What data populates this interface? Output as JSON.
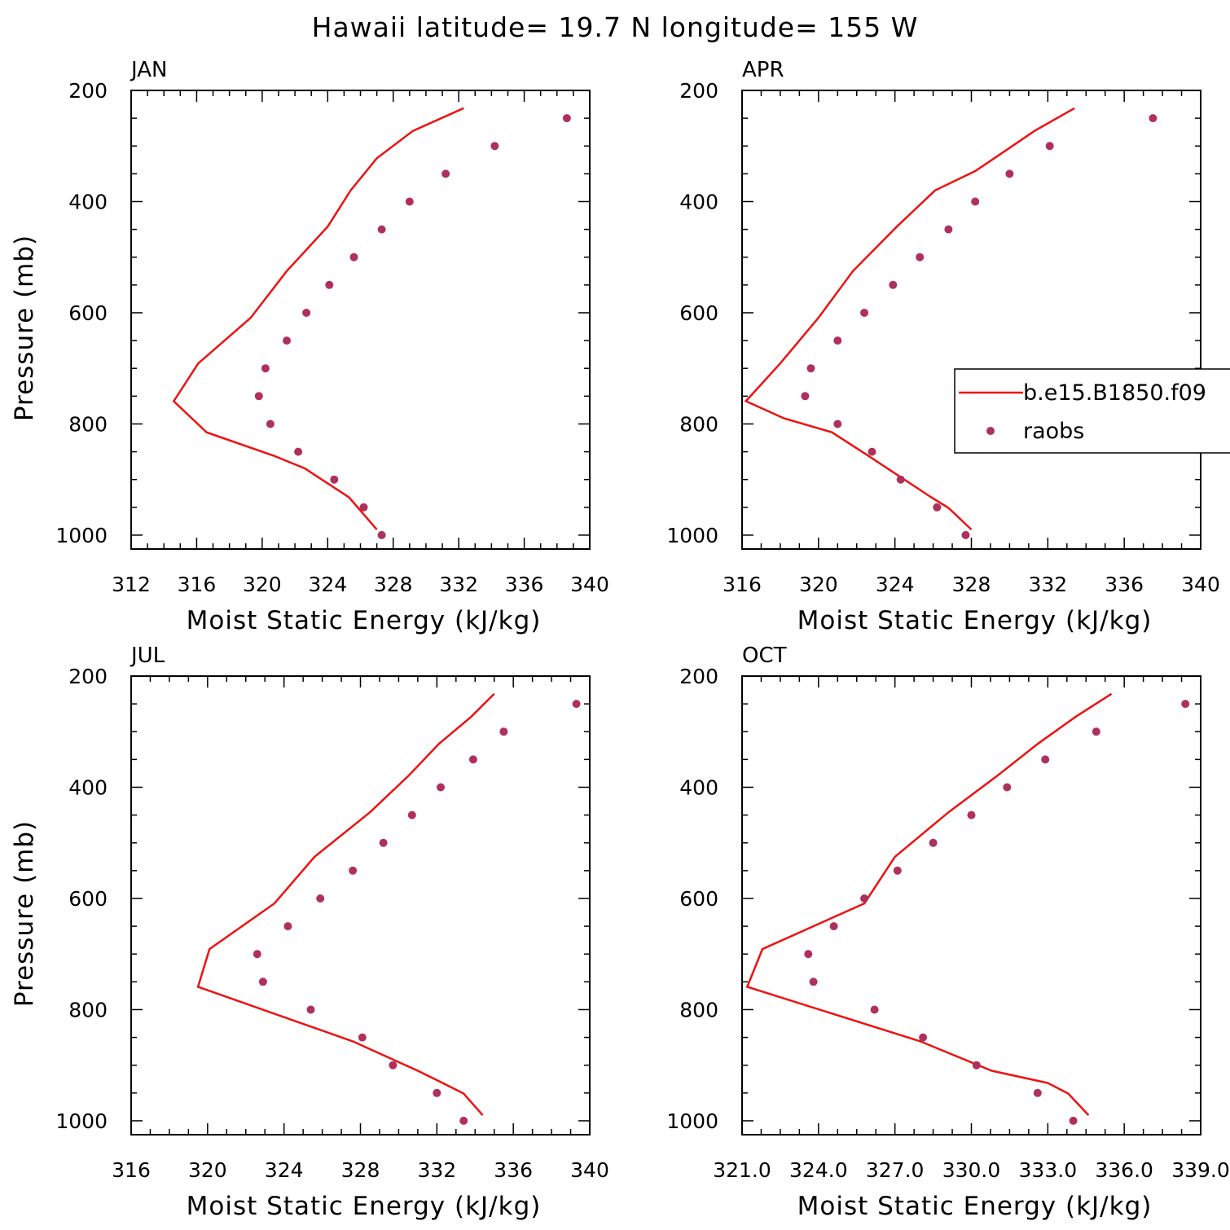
{
  "title": "Hawaii  latitude= 19.7 N longitude= 155 W",
  "colors": {
    "model_line": "#ee1111",
    "raobs_marker": "#b0305c",
    "axes": "#000000"
  },
  "legend": {
    "location": "right of APR panel",
    "entries": [
      "b.e15.B1850.f09",
      "raobs"
    ]
  },
  "chart_data": [
    {
      "type": "line",
      "panel": "JAN",
      "xlabel": "Moist Static Energy (kJ/kg)",
      "ylabel": "Pressure (mb)",
      "xlim": [
        312,
        340
      ],
      "ylim": [
        1025,
        200
      ],
      "xticks": [
        312,
        316,
        320,
        324,
        328,
        332,
        336,
        340
      ],
      "xtick_labels": [
        "312",
        "316",
        "320",
        "324",
        "328",
        "332",
        "336",
        "340"
      ],
      "yticks": [
        200,
        400,
        600,
        800,
        1000
      ],
      "yminor": 50,
      "series": [
        {
          "name": "b.e15.B1850.f09",
          "kind": "line",
          "x": [
            332.3,
            329.2,
            327.0,
            325.4,
            324.0,
            321.5,
            319.3,
            316.1,
            314.6,
            316.6,
            320.7,
            322.6,
            325.3,
            327.0
          ],
          "y": [
            232,
            273,
            322,
            380,
            445,
            525,
            609,
            691,
            759,
            815,
            857,
            880,
            932,
            990
          ]
        },
        {
          "name": "raobs",
          "kind": "scatter",
          "x": [
            338.6,
            334.2,
            331.2,
            329.0,
            327.3,
            325.6,
            324.1,
            322.7,
            321.5,
            320.2,
            319.8,
            320.5,
            322.2,
            324.4,
            326.2,
            327.3
          ],
          "y": [
            250,
            300,
            350,
            400,
            450,
            500,
            550,
            600,
            650,
            700,
            750,
            800,
            850,
            900,
            950,
            1000
          ]
        }
      ]
    },
    {
      "type": "line",
      "panel": "APR",
      "xlabel": "Moist Static Energy (kJ/kg)",
      "ylabel": "",
      "xlim": [
        316,
        340
      ],
      "ylim": [
        1025,
        200
      ],
      "xticks": [
        316,
        320,
        324,
        328,
        332,
        336,
        340
      ],
      "xtick_labels": [
        "316",
        "320",
        "324",
        "328",
        "332",
        "336",
        "340"
      ],
      "yticks": [
        200,
        400,
        600,
        800,
        1000
      ],
      "yminor": 50,
      "series": [
        {
          "name": "b.e15.B1850.f09",
          "kind": "line",
          "x": [
            333.4,
            331.3,
            329.2,
            328.2,
            326.1,
            324.1,
            321.8,
            320.0,
            318.0,
            316.2,
            318.2,
            320.7,
            322.6,
            325.9,
            326.8,
            328.0
          ],
          "y": [
            232,
            273,
            322,
            345,
            380,
            445,
            525,
            609,
            691,
            759,
            790,
            815,
            857,
            932,
            951,
            990
          ]
        },
        {
          "name": "raobs",
          "kind": "scatter",
          "x": [
            337.5,
            332.1,
            330.0,
            328.2,
            326.8,
            325.3,
            323.9,
            322.4,
            321.0,
            319.6,
            319.3,
            321.0,
            322.8,
            324.3,
            326.2,
            327.7
          ],
          "y": [
            250,
            300,
            350,
            400,
            450,
            500,
            550,
            600,
            650,
            700,
            750,
            800,
            850,
            900,
            950,
            1000
          ]
        }
      ]
    },
    {
      "type": "line",
      "panel": "JUL",
      "xlabel": "Moist Static Energy (kJ/kg)",
      "ylabel": "Pressure (mb)",
      "xlim": [
        316,
        340
      ],
      "ylim": [
        1025,
        200
      ],
      "xticks": [
        316,
        320,
        324,
        328,
        332,
        336,
        340
      ],
      "xtick_labels": [
        "316",
        "320",
        "324",
        "328",
        "332",
        "336",
        "340"
      ],
      "yticks": [
        200,
        400,
        600,
        800,
        1000
      ],
      "yminor": 50,
      "series": [
        {
          "name": "b.e15.B1850.f09",
          "kind": "line",
          "x": [
            335.0,
            333.8,
            332.1,
            330.5,
            328.5,
            325.6,
            323.5,
            320.1,
            319.5,
            327.6,
            331.0,
            332.3,
            333.4,
            334.4
          ],
          "y": [
            232,
            273,
            322,
            380,
            445,
            525,
            609,
            691,
            759,
            857,
            910,
            932,
            951,
            990
          ]
        },
        {
          "name": "raobs",
          "kind": "scatter",
          "x": [
            339.3,
            335.5,
            333.9,
            332.2,
            330.7,
            329.2,
            327.6,
            325.9,
            324.2,
            322.6,
            322.9,
            325.4,
            328.1,
            329.7,
            332.0,
            333.4
          ],
          "y": [
            250,
            300,
            350,
            400,
            450,
            500,
            550,
            600,
            650,
            700,
            750,
            800,
            850,
            900,
            950,
            1000
          ]
        }
      ]
    },
    {
      "type": "line",
      "panel": "OCT",
      "xlabel": "Moist Static Energy (kJ/kg)",
      "ylabel": "",
      "xlim": [
        321,
        339
      ],
      "ylim": [
        1025,
        200
      ],
      "xticks": [
        321,
        324,
        327,
        330,
        333,
        336,
        339
      ],
      "xtick_labels": [
        "321.0",
        "324.0",
        "327.0",
        "330.0",
        "333.0",
        "336.0",
        "339.0"
      ],
      "yticks": [
        200,
        400,
        600,
        800,
        1000
      ],
      "yminor": 50,
      "series": [
        {
          "name": "b.e15.B1850.f09",
          "kind": "line",
          "x": [
            335.5,
            334.1,
            332.6,
            331.0,
            329.1,
            327.0,
            325.8,
            321.8,
            321.2,
            328.0,
            330.8,
            333.0,
            333.8,
            334.6
          ],
          "y": [
            232,
            273,
            322,
            380,
            445,
            525,
            609,
            691,
            759,
            857,
            910,
            932,
            951,
            990
          ]
        },
        {
          "name": "raobs",
          "kind": "scatter",
          "x": [
            338.4,
            334.9,
            332.9,
            331.4,
            330.0,
            328.5,
            327.1,
            325.8,
            324.6,
            323.6,
            323.8,
            326.2,
            328.1,
            330.2,
            332.6,
            334.0
          ],
          "y": [
            250,
            300,
            350,
            400,
            450,
            500,
            550,
            600,
            650,
            700,
            750,
            800,
            850,
            900,
            950,
            1000
          ]
        }
      ]
    }
  ]
}
